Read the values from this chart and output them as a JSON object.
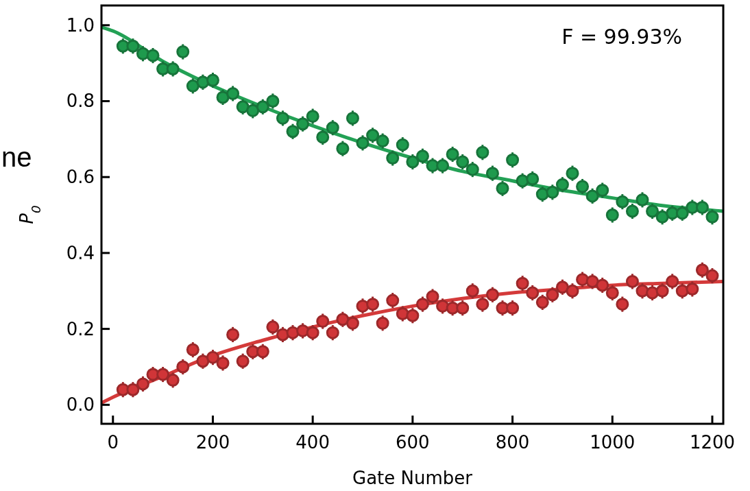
{
  "chart_data": {
    "type": "scatter",
    "xlabel": "Gate Number",
    "ylabel": "P$_{0}$",
    "annotations": [
      "F = 99.93%",
      "ne"
    ],
    "xlim": [
      -23,
      1222
    ],
    "ylim": [
      -0.05,
      1.052
    ],
    "xticks": [
      0,
      200,
      400,
      600,
      800,
      1000,
      1200
    ],
    "yticks": [
      {
        "value": 0,
        "label": "0.0"
      },
      {
        "value": 0.2,
        "label": "0.2"
      },
      {
        "value": 0.4,
        "label": "0.4"
      },
      {
        "value": 0.6,
        "label": "0.6"
      },
      {
        "value": 0.8,
        "label": "0.8"
      },
      {
        "value": 1,
        "label": "1.0"
      }
    ],
    "grid": false,
    "marker": "circle",
    "x": [
      20,
      40,
      60,
      80,
      100,
      120,
      140,
      160,
      180,
      200,
      220,
      240,
      260,
      280,
      300,
      320,
      340,
      360,
      380,
      400,
      420,
      440,
      460,
      480,
      500,
      520,
      540,
      560,
      580,
      600,
      620,
      640,
      660,
      680,
      700,
      720,
      740,
      760,
      780,
      800,
      820,
      840,
      860,
      880,
      900,
      920,
      940,
      960,
      980,
      1000,
      1020,
      1040,
      1060,
      1080,
      1100,
      1120,
      1140,
      1160,
      1180,
      1200
    ],
    "series": [
      {
        "color": "#1e9a4d",
        "errors": [
          0.02,
          0.02,
          0.02,
          0.02,
          0.02,
          0.02,
          0.02,
          0.02,
          0.02,
          0.02,
          0.02,
          0.02,
          0.02,
          0.02,
          0.02,
          0.02,
          0.02,
          0.02,
          0.02,
          0.02,
          0.02,
          0.02,
          0.02,
          0.02,
          0.02,
          0.02,
          0.02,
          0.02,
          0.02,
          0.02,
          0.02,
          0.02,
          0.02,
          0.02,
          0.02,
          0.02,
          0.02,
          0.02,
          0.02,
          0.02,
          0.02,
          0.02,
          0.02,
          0.02,
          0.02,
          0.02,
          0.02,
          0.02,
          0.02,
          0.02,
          0.02,
          0.02,
          0.02,
          0.02,
          0.02,
          0.02,
          0.02,
          0.02,
          0.02,
          0.02
        ],
        "values": [
          0.945,
          0.945,
          0.925,
          0.92,
          0.885,
          0.885,
          0.93,
          0.84,
          0.85,
          0.855,
          0.81,
          0.82,
          0.785,
          0.775,
          0.785,
          0.8,
          0.755,
          0.72,
          0.74,
          0.76,
          0.705,
          0.73,
          0.675,
          0.755,
          0.69,
          0.71,
          0.695,
          0.65,
          0.685,
          0.64,
          0.655,
          0.63,
          0.63,
          0.66,
          0.64,
          0.62,
          0.665,
          0.61,
          0.57,
          0.645,
          0.59,
          0.595,
          0.555,
          0.56,
          0.58,
          0.61,
          0.575,
          0.55,
          0.565,
          0.5,
          0.535,
          0.51,
          0.54,
          0.51,
          0.495,
          0.505,
          0.505,
          0.52,
          0.52,
          0.495
        ]
      },
      {
        "color": "#d03538",
        "errors": [
          0.02,
          0.02,
          0.02,
          0.02,
          0.02,
          0.02,
          0.02,
          0.02,
          0.02,
          0.02,
          0.02,
          0.02,
          0.02,
          0.02,
          0.02,
          0.02,
          0.02,
          0.02,
          0.02,
          0.02,
          0.02,
          0.02,
          0.02,
          0.02,
          0.02,
          0.02,
          0.02,
          0.02,
          0.02,
          0.02,
          0.02,
          0.02,
          0.02,
          0.02,
          0.02,
          0.02,
          0.02,
          0.02,
          0.02,
          0.02,
          0.02,
          0.02,
          0.02,
          0.02,
          0.02,
          0.02,
          0.02,
          0.02,
          0.02,
          0.02,
          0.02,
          0.02,
          0.02,
          0.02,
          0.02,
          0.02,
          0.02,
          0.02,
          0.02,
          0.02
        ],
        "values": [
          0.04,
          0.04,
          0.055,
          0.08,
          0.08,
          0.065,
          0.1,
          0.145,
          0.115,
          0.125,
          0.11,
          0.185,
          0.115,
          0.14,
          0.14,
          0.205,
          0.185,
          0.19,
          0.195,
          0.19,
          0.22,
          0.19,
          0.225,
          0.215,
          0.26,
          0.265,
          0.215,
          0.275,
          0.24,
          0.235,
          0.265,
          0.285,
          0.26,
          0.255,
          0.255,
          0.3,
          0.265,
          0.29,
          0.255,
          0.255,
          0.32,
          0.295,
          0.27,
          0.29,
          0.31,
          0.3,
          0.33,
          0.325,
          0.315,
          0.295,
          0.265,
          0.325,
          0.3,
          0.295,
          0.3,
          0.325,
          0.3,
          0.305,
          0.355,
          0.34
        ]
      },
      {
        "type": "line",
        "marker": "none",
        "color": "#23a155",
        "x": [
          -23,
          0,
          100,
          200,
          300,
          400,
          500,
          600,
          700,
          800,
          900,
          1000,
          1100,
          1222
        ],
        "values": [
          0.995,
          0.985,
          0.905,
          0.84,
          0.785,
          0.735,
          0.69,
          0.65,
          0.615,
          0.59,
          0.565,
          0.545,
          0.525,
          0.51
        ]
      },
      {
        "type": "line",
        "marker": "none",
        "color": "#d43a3a",
        "x": [
          -23,
          0,
          100,
          200,
          300,
          400,
          500,
          600,
          700,
          800,
          900,
          1000,
          1100,
          1222
        ],
        "values": [
          0.005,
          0.02,
          0.075,
          0.13,
          0.17,
          0.205,
          0.235,
          0.26,
          0.28,
          0.295,
          0.305,
          0.315,
          0.32,
          0.325
        ]
      }
    ]
  }
}
